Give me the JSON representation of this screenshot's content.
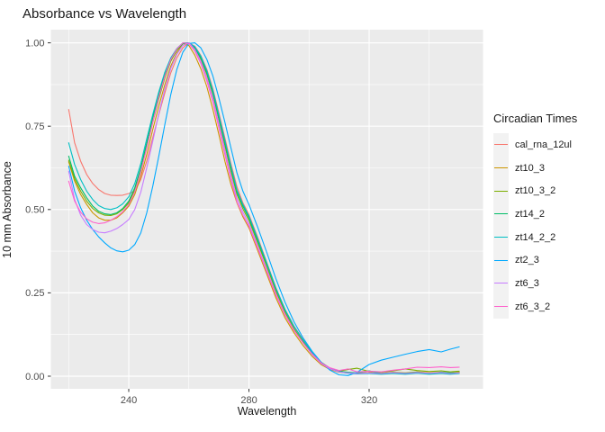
{
  "title": "Absorbance vs Wavelength",
  "chart_data": {
    "type": "line",
    "title": "Absorbance vs Wavelength",
    "xlabel": "Wavelength",
    "ylabel": "10 mm Absorbance",
    "xlim": [
      220,
      350
    ],
    "ylim": [
      0,
      1
    ],
    "grid": "on",
    "panel_background": "#EBEBEB",
    "gridline_color": "#FFFFFF",
    "tick_label_color": "#4D4D4D",
    "x_major_ticks": [
      240,
      280,
      320
    ],
    "x_tick_labels": [
      "240",
      "280",
      "320"
    ],
    "x_minor_gridlines": [
      220,
      260,
      300,
      340
    ],
    "y_major_ticks": [
      0,
      0.25,
      0.5,
      0.75,
      1
    ],
    "y_tick_labels": [
      "0.00",
      "0.25",
      "0.50",
      "0.75",
      "1.00"
    ],
    "y_minor_gridlines": [
      0.125,
      0.375,
      0.625,
      0.875
    ],
    "legend_position": "right",
    "legend_title": "Circadian Times",
    "x": [
      220,
      222,
      224,
      226,
      228,
      230,
      232,
      234,
      236,
      238,
      240,
      242,
      244,
      246,
      248,
      250,
      252,
      254,
      256,
      258,
      260,
      262,
      264,
      266,
      268,
      270,
      272,
      274,
      276,
      278,
      280,
      283,
      286,
      289,
      292,
      295,
      298,
      301,
      304,
      307,
      310,
      313,
      316,
      320,
      324,
      328,
      332,
      336,
      340,
      344,
      347,
      350
    ],
    "series": [
      {
        "name": "cal_rna_12ul",
        "color": "#F8766D",
        "values": [
          0.8,
          0.7,
          0.645,
          0.605,
          0.578,
          0.56,
          0.548,
          0.543,
          0.542,
          0.543,
          0.548,
          0.555,
          0.59,
          0.645,
          0.715,
          0.785,
          0.85,
          0.91,
          0.955,
          0.985,
          1.0,
          0.99,
          0.962,
          0.92,
          0.862,
          0.79,
          0.715,
          0.638,
          0.568,
          0.52,
          0.485,
          0.415,
          0.34,
          0.265,
          0.2,
          0.15,
          0.11,
          0.073,
          0.042,
          0.024,
          0.014,
          0.01,
          0.008,
          0.009,
          0.007,
          0.01,
          0.008,
          0.011,
          0.008,
          0.01,
          0.008,
          0.01
        ]
      },
      {
        "name": "zt10_3",
        "color": "#CD9600",
        "values": [
          0.643,
          0.585,
          0.545,
          0.515,
          0.49,
          0.475,
          0.468,
          0.468,
          0.475,
          0.49,
          0.51,
          0.545,
          0.6,
          0.665,
          0.74,
          0.81,
          0.875,
          0.93,
          0.97,
          0.998,
          0.992,
          0.963,
          0.922,
          0.868,
          0.8,
          0.725,
          0.645,
          0.575,
          0.52,
          0.478,
          0.445,
          0.375,
          0.305,
          0.235,
          0.175,
          0.13,
          0.092,
          0.06,
          0.035,
          0.02,
          0.012,
          0.01,
          0.009,
          0.011,
          0.009,
          0.012,
          0.01,
          0.013,
          0.01,
          0.012,
          0.01,
          0.012
        ]
      },
      {
        "name": "zt10_3_2",
        "color": "#7CAE00",
        "values": [
          0.648,
          0.592,
          0.555,
          0.525,
          0.503,
          0.49,
          0.483,
          0.482,
          0.487,
          0.5,
          0.52,
          0.558,
          0.615,
          0.688,
          0.762,
          0.832,
          0.895,
          0.945,
          0.978,
          0.997,
          1.0,
          0.982,
          0.95,
          0.905,
          0.845,
          0.77,
          0.692,
          0.615,
          0.545,
          0.502,
          0.468,
          0.398,
          0.328,
          0.255,
          0.192,
          0.142,
          0.103,
          0.068,
          0.04,
          0.023,
          0.015,
          0.02,
          0.024,
          0.014,
          0.012,
          0.016,
          0.022,
          0.017,
          0.014,
          0.016,
          0.013,
          0.015
        ]
      },
      {
        "name": "zt14_2",
        "color": "#00BE67",
        "values": [
          0.66,
          0.6,
          0.565,
          0.535,
          0.51,
          0.495,
          0.487,
          0.485,
          0.49,
          0.503,
          0.525,
          0.565,
          0.625,
          0.7,
          0.775,
          0.845,
          0.905,
          0.95,
          0.98,
          0.998,
          1.0,
          0.985,
          0.955,
          0.91,
          0.85,
          0.775,
          0.7,
          0.625,
          0.553,
          0.51,
          0.475,
          0.405,
          0.335,
          0.262,
          0.198,
          0.148,
          0.108,
          0.072,
          0.042,
          0.024,
          0.015,
          0.012,
          0.01,
          0.016,
          0.008,
          0.011,
          0.009,
          0.012,
          0.008,
          0.012,
          0.01,
          0.01
        ]
      },
      {
        "name": "zt14_2_2",
        "color": "#00BFC4",
        "values": [
          0.7,
          0.635,
          0.59,
          0.555,
          0.53,
          0.512,
          0.503,
          0.5,
          0.505,
          0.517,
          0.538,
          0.578,
          0.638,
          0.712,
          0.785,
          0.853,
          0.912,
          0.955,
          0.983,
          1.0,
          1.0,
          0.988,
          0.96,
          0.916,
          0.857,
          0.783,
          0.707,
          0.63,
          0.558,
          0.515,
          0.48,
          0.41,
          0.338,
          0.264,
          0.2,
          0.149,
          0.108,
          0.071,
          0.041,
          0.023,
          0.013,
          0.009,
          0.007,
          0.008,
          0.006,
          0.008,
          0.006,
          0.009,
          0.006,
          0.008,
          0.006,
          0.008
        ]
      },
      {
        "name": "zt2_3",
        "color": "#00A9FF",
        "values": [
          0.63,
          0.555,
          0.505,
          0.468,
          0.44,
          0.418,
          0.4,
          0.385,
          0.376,
          0.373,
          0.378,
          0.395,
          0.43,
          0.49,
          0.57,
          0.66,
          0.755,
          0.845,
          0.92,
          0.972,
          0.998,
          1.0,
          0.985,
          0.95,
          0.9,
          0.835,
          0.762,
          0.685,
          0.61,
          0.555,
          0.515,
          0.445,
          0.37,
          0.292,
          0.222,
          0.163,
          0.115,
          0.075,
          0.042,
          0.018,
          0.004,
          0.002,
          0.012,
          0.035,
          0.048,
          0.057,
          0.066,
          0.074,
          0.08,
          0.073,
          0.081,
          0.088
        ]
      },
      {
        "name": "zt6_3",
        "color": "#C77CFF",
        "values": [
          0.615,
          0.53,
          0.483,
          0.455,
          0.44,
          0.432,
          0.43,
          0.435,
          0.443,
          0.455,
          0.47,
          0.5,
          0.552,
          0.625,
          0.705,
          0.788,
          0.862,
          0.923,
          0.966,
          0.992,
          1.0,
          0.98,
          0.945,
          0.895,
          0.832,
          0.757,
          0.678,
          0.6,
          0.532,
          0.492,
          0.458,
          0.388,
          0.318,
          0.247,
          0.186,
          0.138,
          0.1,
          0.065,
          0.038,
          0.022,
          0.013,
          0.01,
          0.008,
          0.01,
          0.008,
          0.011,
          0.008,
          0.011,
          0.009,
          0.011,
          0.008,
          0.01
        ]
      },
      {
        "name": "zt6_3_2",
        "color": "#FF61CC",
        "values": [
          0.585,
          0.525,
          0.492,
          0.472,
          0.462,
          0.458,
          0.46,
          0.468,
          0.478,
          0.493,
          0.515,
          0.553,
          0.613,
          0.685,
          0.762,
          0.838,
          0.9,
          0.95,
          0.982,
          1.0,
          0.998,
          0.975,
          0.938,
          0.885,
          0.822,
          0.745,
          0.665,
          0.59,
          0.522,
          0.483,
          0.45,
          0.382,
          0.312,
          0.243,
          0.183,
          0.137,
          0.1,
          0.067,
          0.04,
          0.025,
          0.017,
          0.022,
          0.013,
          0.015,
          0.013,
          0.018,
          0.022,
          0.027,
          0.026,
          0.028,
          0.026,
          0.027
        ]
      }
    ]
  }
}
